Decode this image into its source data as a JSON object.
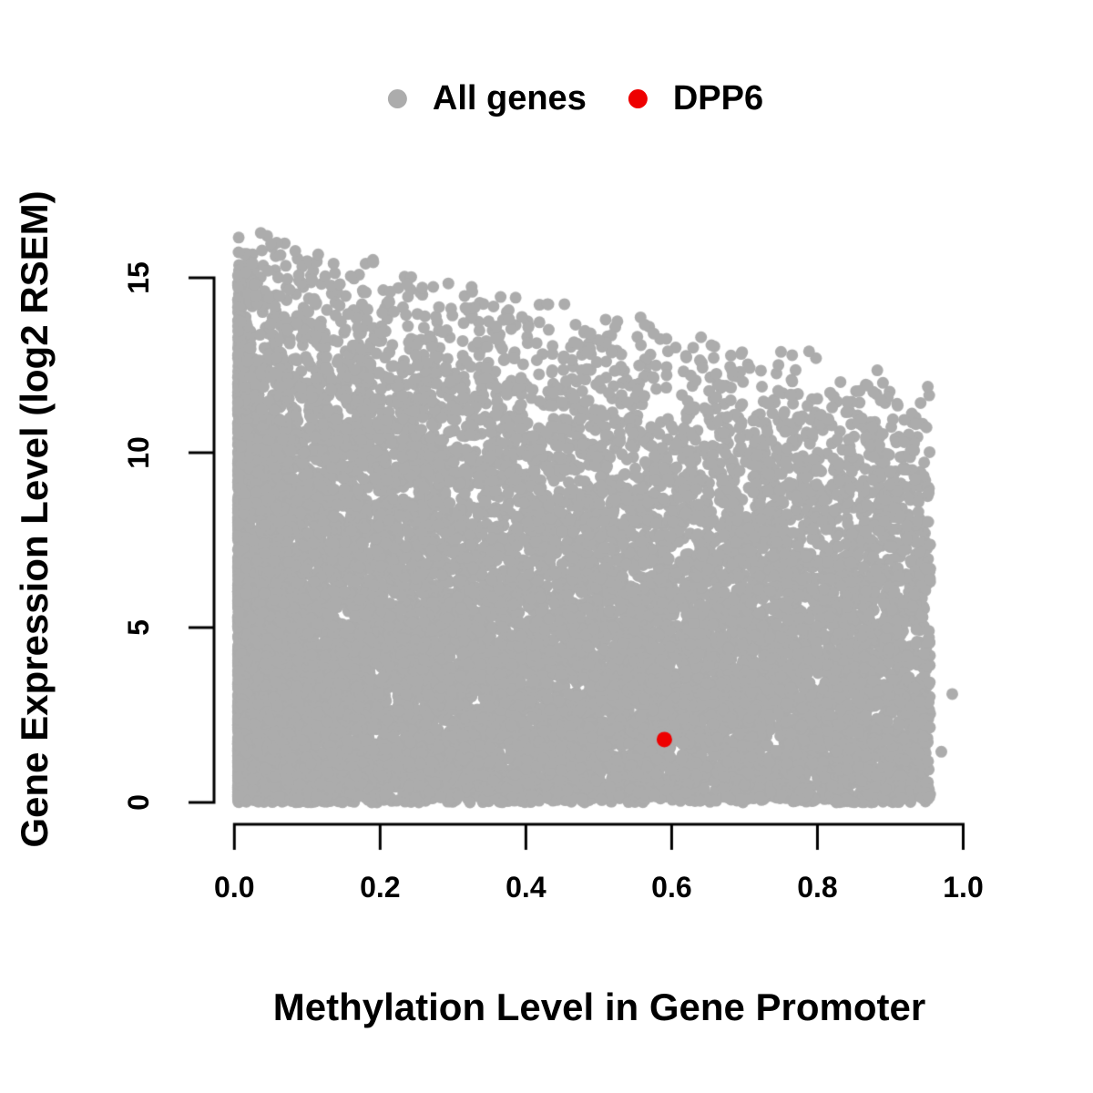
{
  "chart_data": {
    "type": "scatter",
    "title": "",
    "xlabel": "Methylation Level in Gene Promoter",
    "ylabel": "Gene Expression Level (log2 RSEM)",
    "xlim": [
      0,
      1.0
    ],
    "ylim": [
      0,
      16.8
    ],
    "x_ticks": [
      0,
      0.2,
      0.4,
      0.6,
      0.8,
      1.0
    ],
    "x_tick_labels": [
      "0.0",
      "0.2",
      "0.4",
      "0.6",
      "0.8",
      "1.0"
    ],
    "y_ticks": [
      0,
      5,
      10,
      15
    ],
    "y_tick_labels": [
      "0",
      "5",
      "10",
      "15"
    ],
    "grid": false,
    "legend_position": "top-center",
    "axis_color": "#000000",
    "series": [
      {
        "name": "All genes",
        "type": "scatter",
        "color": "#ACACAC",
        "marker": "filled-circle",
        "marker_radius_px": 6.5,
        "summary": "Dense cloud of ~14,000 genes; methylation 0.00-0.96, expression 0-16.6 log2 RSEM; densest at low methylation and low expression; maximum expression declines from ~16.5 at methylation 0 to ~12 at methylation 0.95",
        "generator": {
          "seed": 11,
          "n": 14000,
          "x_min": 0.005,
          "x_max": 0.955,
          "x_uniform_weight": 0.55,
          "x_skew_power": 2.2,
          "envelope_intercept": 16.6,
          "envelope_slope": -4.6,
          "fade_power": 0.55
        },
        "outlier_points": [
          [
            0.985,
            3.1
          ],
          [
            0.97,
            1.45
          ]
        ]
      },
      {
        "name": "DPP6",
        "type": "scatter",
        "color": "#EE0000",
        "marker": "filled-circle",
        "marker_radius_px": 8.5,
        "points": [
          [
            0.59,
            1.8
          ]
        ]
      }
    ]
  }
}
